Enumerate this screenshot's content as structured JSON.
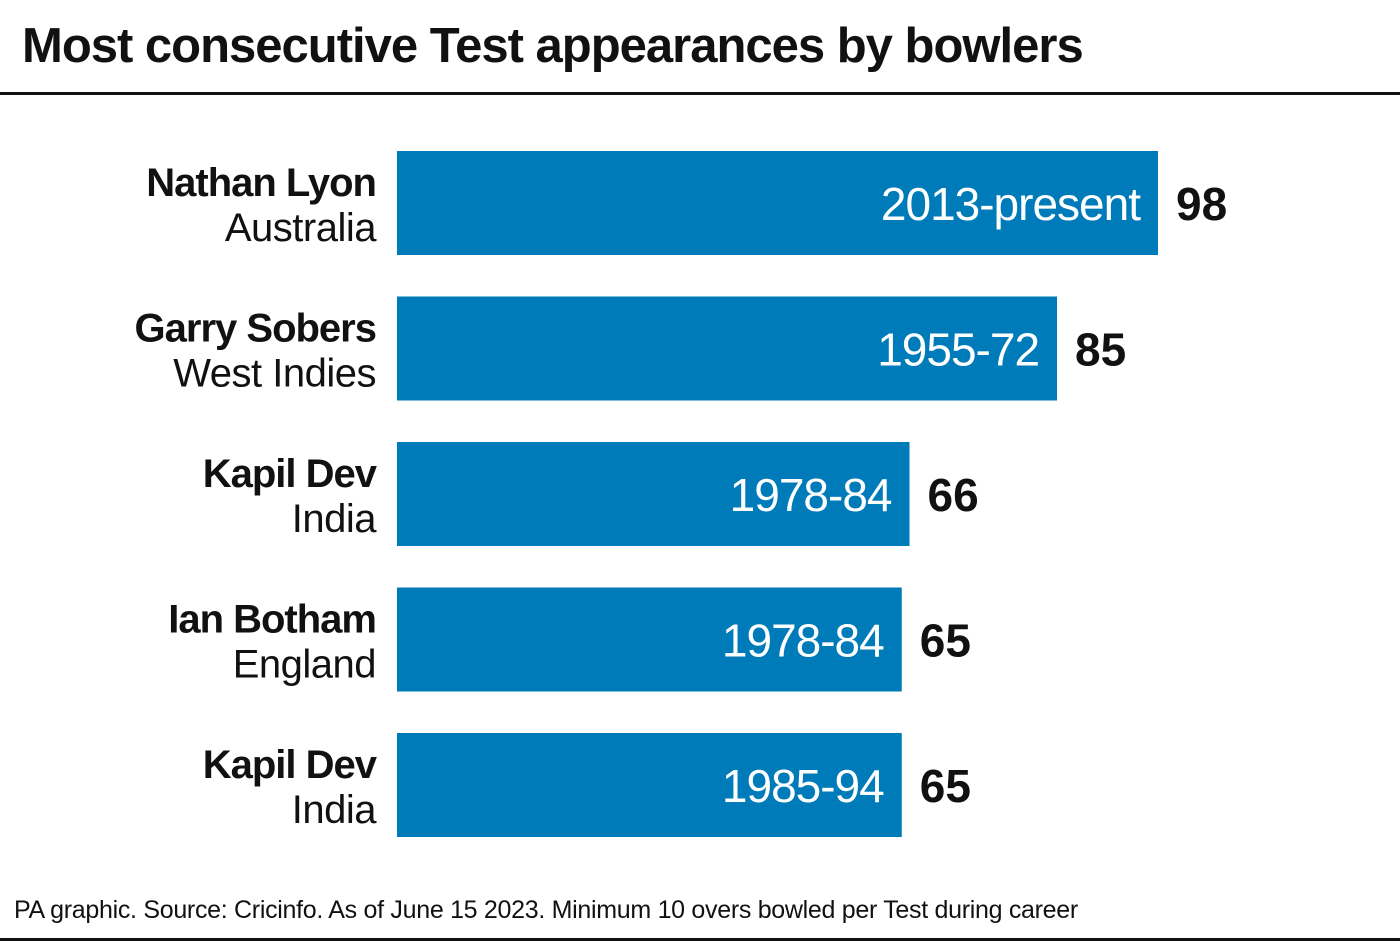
{
  "title": "Most consecutive Test appearances by bowlers",
  "footer": "PA graphic. Source: Cricinfo. As of June 15 2023. Minimum 10 overs bowled per Test during career",
  "colors": {
    "bar": "#007bba",
    "bar_text": "#ffffff",
    "value_text": "#111111",
    "name_text": "#111111"
  },
  "chart_data": {
    "type": "bar",
    "orientation": "horizontal",
    "title": "Most consecutive Test appearances by bowlers",
    "xlim": [
      0,
      98
    ],
    "grid": false,
    "categories": [
      "Nathan Lyon",
      "Garry Sobers",
      "Kapil Dev",
      "Ian Botham",
      "Kapil Dev"
    ],
    "countries": [
      "Australia",
      "West Indies",
      "India",
      "England",
      "India"
    ],
    "periods": [
      "2013-present",
      "1955-72",
      "1978-84",
      "1978-84",
      "1985-94"
    ],
    "values": [
      98,
      85,
      66,
      65,
      65
    ]
  }
}
